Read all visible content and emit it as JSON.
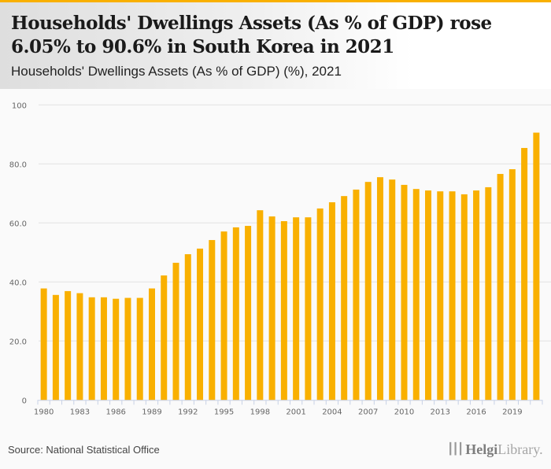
{
  "header": {
    "title": "Households' Dwellings Assets (As % of GDP) rose 6.05% to 90.6% in South Korea in 2021",
    "subtitle": "Households' Dwellings Assets (As % of GDP) (%), 2021"
  },
  "footer": {
    "source": "Source: National Statistical Office",
    "logo_icon": "helgi-library-logo-icon",
    "logo_bold": "Helgi",
    "logo_light": "Library."
  },
  "colors": {
    "accent": "#f9b000",
    "bar": "#f9b000"
  },
  "chart_data": {
    "type": "bar",
    "title": "Households' Dwellings Assets (As % of GDP) (%), 2021",
    "xlabel": "",
    "ylabel": "",
    "ylim": [
      0,
      100
    ],
    "yticks": [
      0,
      20,
      40,
      60,
      80,
      100
    ],
    "ytick_labels": [
      "0",
      "20.0",
      "40.0",
      "60.0",
      "80.0",
      "100"
    ],
    "grid": true,
    "legend": "none",
    "categories": [
      "1980",
      "1981",
      "1982",
      "1983",
      "1984",
      "1985",
      "1986",
      "1987",
      "1988",
      "1989",
      "1990",
      "1991",
      "1992",
      "1993",
      "1994",
      "1995",
      "1996",
      "1997",
      "1998",
      "1999",
      "2000",
      "2001",
      "2002",
      "2003",
      "2004",
      "2005",
      "2006",
      "2007",
      "2008",
      "2009",
      "2010",
      "2011",
      "2012",
      "2013",
      "2014",
      "2015",
      "2016",
      "2017",
      "2018",
      "2019",
      "2020",
      "2021"
    ],
    "xtick_labels": [
      "1980",
      "1983",
      "1986",
      "1989",
      "1992",
      "1995",
      "1998",
      "2001",
      "2004",
      "2007",
      "2010",
      "2013",
      "2016",
      "2019"
    ],
    "values": [
      37.8,
      35.6,
      36.9,
      36.2,
      34.8,
      34.8,
      34.3,
      34.6,
      34.6,
      37.8,
      42.2,
      46.5,
      49.4,
      51.3,
      54.2,
      57.1,
      58.5,
      59.0,
      64.3,
      62.2,
      60.6,
      61.9,
      61.9,
      64.9,
      67.0,
      69.1,
      71.3,
      73.9,
      75.5,
      74.7,
      72.9,
      71.5,
      71.0,
      70.7,
      70.7,
      69.7,
      71.0,
      72.1,
      76.6,
      78.2,
      85.4,
      90.6
    ],
    "series": [
      {
        "name": "Households' Dwellings Assets (As % of GDP)",
        "color": "#f9b000"
      }
    ]
  }
}
